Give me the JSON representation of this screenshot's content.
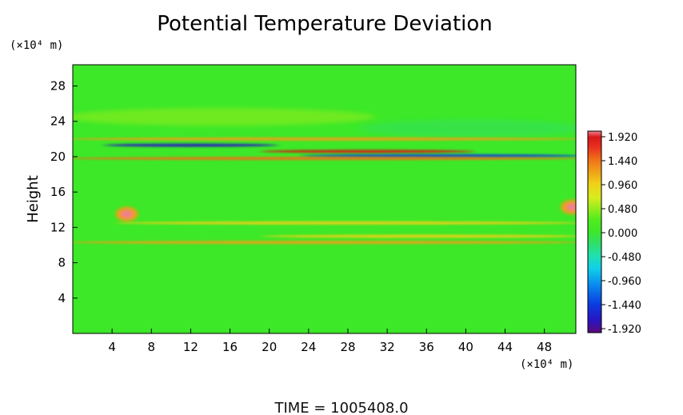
{
  "chart_data": {
    "type": "heatmap",
    "title": "Potential Temperature Deviation",
    "ylabel": "Height",
    "x_unit": "(×10⁴ m)",
    "y_unit": "(×10⁴ m)",
    "x_range": [
      0,
      51.2
    ],
    "y_range": [
      0,
      30.4
    ],
    "x_ticks": [
      "4",
      "8",
      "12",
      "16",
      "20",
      "24",
      "28",
      "32",
      "36",
      "40",
      "44",
      "48"
    ],
    "y_ticks": [
      "4",
      "8",
      "12",
      "16",
      "20",
      "24",
      "28"
    ],
    "colorbar": {
      "range": [
        -1.92,
        1.92
      ],
      "tick_labels": [
        "1.920",
        "1.440",
        "0.960",
        "0.480",
        "0.000",
        "-0.480",
        "-0.960",
        "-1.440",
        "-1.920"
      ],
      "colors": [
        "#5a0a7a",
        "#2a14c0",
        "#0a3ce0",
        "#0a8cf0",
        "#10d0e8",
        "#20e0b0",
        "#30e060",
        "#3ce828",
        "#50ec1e",
        "#9aec1e",
        "#d8ec1e",
        "#f0d018",
        "#f0a018",
        "#f07018",
        "#e83020",
        "#d81818",
        "#f08090"
      ]
    },
    "background_value": 0.0,
    "features": [
      {
        "type": "band",
        "y_center": 24.5,
        "x_range": [
          0,
          30
        ],
        "value": 0.35
      },
      {
        "type": "band",
        "y_center": 23.2,
        "x_range": [
          30,
          51.2
        ],
        "value": -0.4
      },
      {
        "type": "band",
        "y_center": 22.0,
        "x_range": [
          0,
          51.2
        ],
        "value": 0.9
      },
      {
        "type": "band",
        "y_center": 21.3,
        "x_range": [
          4,
          20
        ],
        "value": -1.6
      },
      {
        "type": "band",
        "y_center": 20.6,
        "x_range": [
          20,
          40
        ],
        "value": 1.7
      },
      {
        "type": "band",
        "y_center": 20.1,
        "x_range": [
          24,
          51.2
        ],
        "value": -1.5
      },
      {
        "type": "band",
        "y_center": 19.8,
        "x_range": [
          0,
          51.2
        ],
        "value": 1.1
      },
      {
        "type": "blob",
        "x": 5.5,
        "y": 13.5,
        "value": 1.9
      },
      {
        "type": "blob",
        "x": 50.8,
        "y": 14.3,
        "value": 1.9
      },
      {
        "type": "band",
        "y_center": 12.5,
        "x_range": [
          5,
          51.2
        ],
        "value": 0.7
      },
      {
        "type": "band",
        "y_center": 11.0,
        "x_range": [
          20,
          51.2
        ],
        "value": 0.6
      },
      {
        "type": "band",
        "y_center": 10.3,
        "x_range": [
          0,
          51.2
        ],
        "value": 0.9
      }
    ],
    "annotation": "TIME  =  1005408.0"
  }
}
